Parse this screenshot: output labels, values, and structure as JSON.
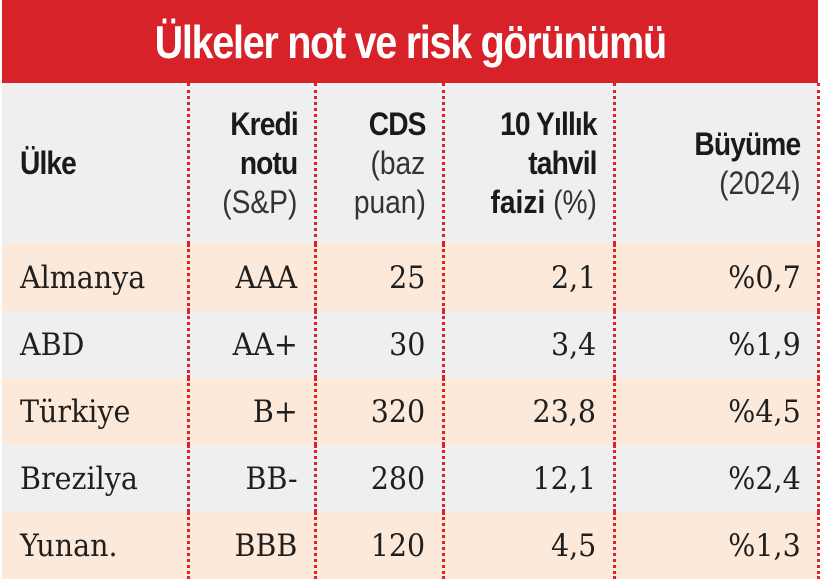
{
  "title": "Ülkeler not ve risk görünümü",
  "colors": {
    "title_bg": "#d82229",
    "divider": "#e0202a",
    "header_bg": "#efefef",
    "row_peach": "#fde9da",
    "row_gray": "#efefef"
  },
  "header": {
    "country": "Ülke",
    "rating": {
      "line1": "Kredi",
      "line2": "notu",
      "sub": "(S&P)"
    },
    "cds": {
      "line1": "CDS",
      "sub1": "(baz",
      "sub2": "puan)"
    },
    "bond": {
      "line1": "10 Yıllık",
      "line2": "tahvil",
      "line3": "faizi",
      "sub": " (%)"
    },
    "growth": {
      "line1": "Büyüme",
      "sub": "(2024)"
    }
  },
  "rows": [
    {
      "country": "Almanya",
      "rating": "AAA",
      "cds": "25",
      "bond": "2,1",
      "growth": "%0,7"
    },
    {
      "country": "ABD",
      "rating": "AA+",
      "cds": "30",
      "bond": "3,4",
      "growth": "%1,9"
    },
    {
      "country": "Türkiye",
      "rating": "B+",
      "cds": "320",
      "bond": "23,8",
      "growth": "%4,5"
    },
    {
      "country": "Brezilya",
      "rating": "BB-",
      "cds": "280",
      "bond": "12,1",
      "growth": "%2,4"
    },
    {
      "country": "Yunan.",
      "rating": "BBB",
      "cds": "120",
      "bond": "4,5",
      "growth": "%1,3"
    }
  ]
}
